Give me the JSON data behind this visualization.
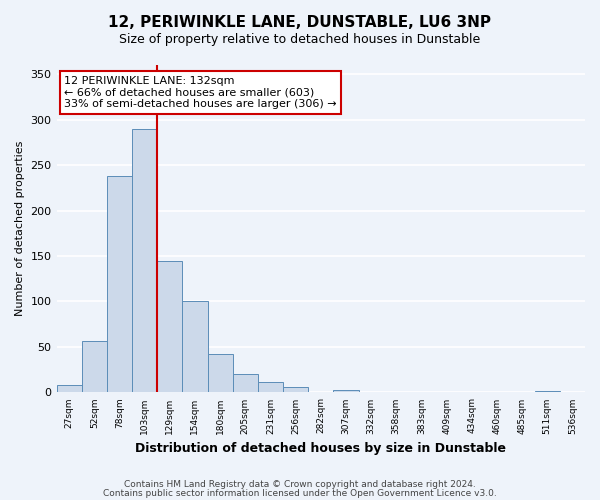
{
  "title": "12, PERIWINKLE LANE, DUNSTABLE, LU6 3NP",
  "subtitle": "Size of property relative to detached houses in Dunstable",
  "xlabel": "Distribution of detached houses by size in Dunstable",
  "ylabel": "Number of detached properties",
  "bar_values": [
    8,
    57,
    238,
    290,
    145,
    101,
    42,
    20,
    12,
    6,
    0,
    3,
    1,
    0,
    0,
    0,
    0,
    0,
    0,
    2,
    0
  ],
  "bin_labels": [
    "27sqm",
    "52sqm",
    "78sqm",
    "103sqm",
    "129sqm",
    "154sqm",
    "180sqm",
    "205sqm",
    "231sqm",
    "256sqm",
    "282sqm",
    "307sqm",
    "332sqm",
    "358sqm",
    "383sqm",
    "409sqm",
    "434sqm",
    "460sqm",
    "485sqm",
    "511sqm",
    "536sqm"
  ],
  "bar_color": "#ccd9ea",
  "bar_edge_color": "#5b8db8",
  "vline_pos": 4,
  "vline_color": "#cc0000",
  "annotation_title": "12 PERIWINKLE LANE: 132sqm",
  "annotation_line1": "← 66% of detached houses are smaller (603)",
  "annotation_line2": "33% of semi-detached houses are larger (306) →",
  "annotation_box_color": "#ffffff",
  "annotation_box_edge": "#cc0000",
  "ylim": [
    0,
    360
  ],
  "yticks": [
    0,
    50,
    100,
    150,
    200,
    250,
    300,
    350
  ],
  "footer1": "Contains HM Land Registry data © Crown copyright and database right 2024.",
  "footer2": "Contains public sector information licensed under the Open Government Licence v3.0.",
  "bg_color": "#eef3fa",
  "grid_color": "#ffffff",
  "title_fontsize": 11,
  "subtitle_fontsize": 9,
  "ylabel_fontsize": 8,
  "xlabel_fontsize": 9
}
